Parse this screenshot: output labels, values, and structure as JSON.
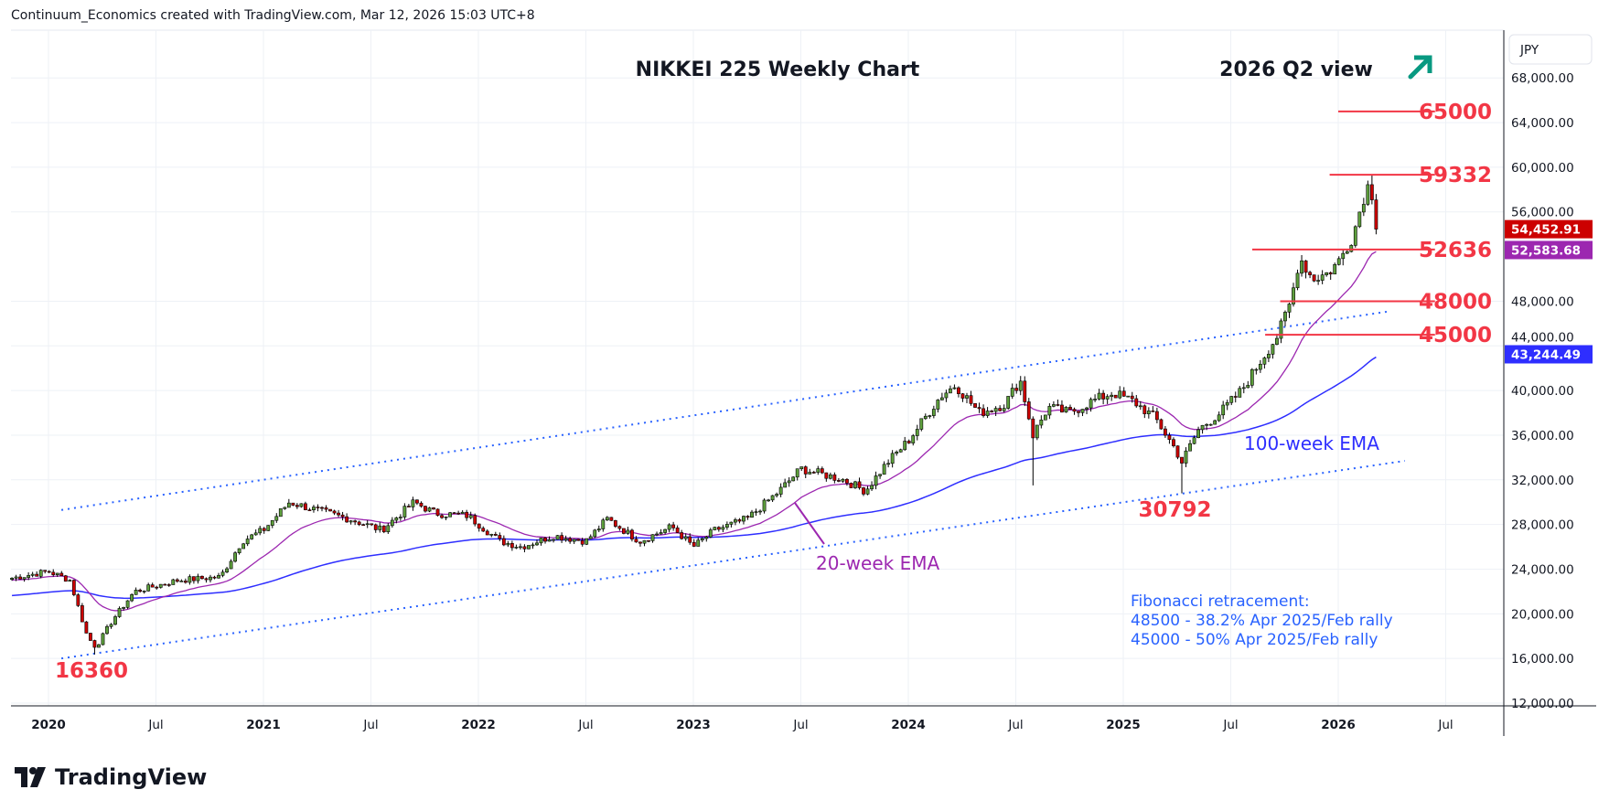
{
  "header": {
    "attribution": "Continuum_Economics created with TradingView.com, Mar 12, 2026 15:03 UTC+8"
  },
  "logo": {
    "text": "TradingView",
    "glyph": "17"
  },
  "chart_data": {
    "type": "candlestick",
    "title": "NIKKEI 225 Weekly Chart",
    "subtitle": "2026 Q2 view",
    "outlook_icon": "up-right-arrow",
    "currency": "JPY",
    "ylim": [
      12000,
      70500
    ],
    "y_ticks": [
      12000,
      16000,
      20000,
      24000,
      28000,
      32000,
      36000,
      40000,
      44000,
      48000,
      56000,
      60000,
      64000,
      68000
    ],
    "y_tick_labels": [
      "12,000.00",
      "16,000.00",
      "20,000.00",
      "24,000.00",
      "28,000.00",
      "32,000.00",
      "36,000.00",
      "40,000.00",
      "44,000.00",
      "48,000.00",
      "56,000.00",
      "60,000.00",
      "64,000.00",
      "68,000.00"
    ],
    "x_range": [
      2019.83,
      2026.75
    ],
    "x_ticks": [
      {
        "t": 2020.0,
        "label": "2020",
        "bold": true
      },
      {
        "t": 2020.5,
        "label": "Jul",
        "bold": false
      },
      {
        "t": 2021.0,
        "label": "2021",
        "bold": true
      },
      {
        "t": 2021.5,
        "label": "Jul",
        "bold": false
      },
      {
        "t": 2022.0,
        "label": "2022",
        "bold": true
      },
      {
        "t": 2022.5,
        "label": "Jul",
        "bold": false
      },
      {
        "t": 2023.0,
        "label": "2023",
        "bold": true
      },
      {
        "t": 2023.5,
        "label": "Jul",
        "bold": false
      },
      {
        "t": 2024.0,
        "label": "2024",
        "bold": true
      },
      {
        "t": 2024.5,
        "label": "Jul",
        "bold": false
      },
      {
        "t": 2025.0,
        "label": "2025",
        "bold": true
      },
      {
        "t": 2025.5,
        "label": "Jul",
        "bold": false
      },
      {
        "t": 2026.0,
        "label": "2026",
        "bold": true
      },
      {
        "t": 2026.5,
        "label": "Jul",
        "bold": false
      }
    ],
    "price_path": [
      [
        2019.83,
        23200
      ],
      [
        2020.0,
        23800
      ],
      [
        2020.1,
        23000
      ],
      [
        2020.18,
        18000
      ],
      [
        2020.22,
        17000
      ],
      [
        2020.3,
        19500
      ],
      [
        2020.4,
        22000
      ],
      [
        2020.5,
        22500
      ],
      [
        2020.6,
        23000
      ],
      [
        2020.8,
        23300
      ],
      [
        2020.9,
        26500
      ],
      [
        2021.0,
        27500
      ],
      [
        2021.12,
        30000
      ],
      [
        2021.3,
        29000
      ],
      [
        2021.4,
        28500
      ],
      [
        2021.55,
        27500
      ],
      [
        2021.7,
        30000
      ],
      [
        2021.8,
        29000
      ],
      [
        2021.95,
        28800
      ],
      [
        2022.1,
        26500
      ],
      [
        2022.2,
        26000
      ],
      [
        2022.35,
        27000
      ],
      [
        2022.5,
        26500
      ],
      [
        2022.6,
        28500
      ],
      [
        2022.75,
        26500
      ],
      [
        2022.9,
        27800
      ],
      [
        2023.0,
        26000
      ],
      [
        2023.1,
        27500
      ],
      [
        2023.25,
        28500
      ],
      [
        2023.4,
        31000
      ],
      [
        2023.5,
        33000
      ],
      [
        2023.6,
        32500
      ],
      [
        2023.7,
        32000
      ],
      [
        2023.8,
        31000
      ],
      [
        2023.9,
        33500
      ],
      [
        2024.0,
        35500
      ],
      [
        2024.15,
        39500
      ],
      [
        2024.22,
        40500
      ],
      [
        2024.33,
        38000
      ],
      [
        2024.45,
        38800
      ],
      [
        2024.52,
        41000
      ],
      [
        2024.58,
        36000
      ],
      [
        2024.65,
        38500
      ],
      [
        2024.75,
        38000
      ],
      [
        2024.85,
        39000
      ],
      [
        2024.95,
        39800
      ],
      [
        2025.05,
        39000
      ],
      [
        2025.15,
        37500
      ],
      [
        2025.25,
        34500
      ],
      [
        2025.27,
        33500
      ],
      [
        2025.35,
        36500
      ],
      [
        2025.45,
        38000
      ],
      [
        2025.55,
        40000
      ],
      [
        2025.65,
        43000
      ],
      [
        2025.72,
        45000
      ],
      [
        2025.78,
        48000
      ],
      [
        2025.82,
        52000
      ],
      [
        2025.88,
        50000
      ],
      [
        2025.95,
        50500
      ],
      [
        2026.0,
        51500
      ],
      [
        2026.07,
        54000
      ],
      [
        2026.12,
        57500
      ],
      [
        2026.15,
        58800
      ],
      [
        2026.17,
        55500
      ],
      [
        2026.19,
        54453
      ]
    ],
    "extreme_wicks": [
      {
        "t": 2020.22,
        "low": 16360
      },
      {
        "t": 2024.58,
        "low": 31500
      },
      {
        "t": 2025.27,
        "low": 30792
      },
      {
        "t": 2026.15,
        "high": 59332
      },
      {
        "t": 2026.19,
        "low": 51400
      }
    ],
    "ema_seeds": {
      "ema20": 23000,
      "ema100": 21600
    },
    "last_values": [
      {
        "label": "54,452.91",
        "value": 54452.91,
        "color": "#cc0000",
        "name": "last-price"
      },
      {
        "label": "52,583.68",
        "value": 52583.68,
        "color": "#9c27b0",
        "name": "ema20-value"
      },
      {
        "label": "43,244.49",
        "value": 43244.49,
        "color": "#2e2eff",
        "name": "ema100-value"
      }
    ],
    "levels": [
      {
        "label": "65000",
        "value": 65000,
        "t0": 2026.0,
        "t1": 2026.45
      },
      {
        "label": "59332",
        "value": 59332,
        "t0": 2025.96,
        "t1": 2026.45
      },
      {
        "label": "52636",
        "value": 52636,
        "t0": 2025.6,
        "t1": 2026.45
      },
      {
        "label": "48000",
        "value": 48000,
        "t0": 2025.73,
        "t1": 2026.45
      },
      {
        "label": "45000",
        "value": 45000,
        "t0": 2025.66,
        "t1": 2026.45
      }
    ],
    "channel": {
      "upper": [
        [
          2020.06,
          29300
        ],
        [
          2026.24,
          47100
        ]
      ],
      "lower": [
        [
          2020.06,
          16000
        ],
        [
          2026.31,
          33700
        ]
      ]
    },
    "annotations": {
      "low_2020": {
        "label": "16360",
        "t": 2020.03,
        "value": 14300
      },
      "low_2025": {
        "label": "30792",
        "t": 2025.07,
        "value": 28700
      },
      "ema100_label": "100-week EMA",
      "ema20_label": "20-week EMA",
      "fib_title": "Fibonacci retracement:",
      "fib_lines": [
        "48500 - 38.2% Apr 2025/Feb rally",
        "45000 - 50% Apr 2025/Feb rally"
      ]
    },
    "colors": {
      "up": "#5d9f3c",
      "down": "#cc0000",
      "level": "#f23645",
      "ema20": "#9c27b0",
      "ema100": "#2e2eff",
      "channel": "#2962ff",
      "arrow": "#089981"
    }
  }
}
